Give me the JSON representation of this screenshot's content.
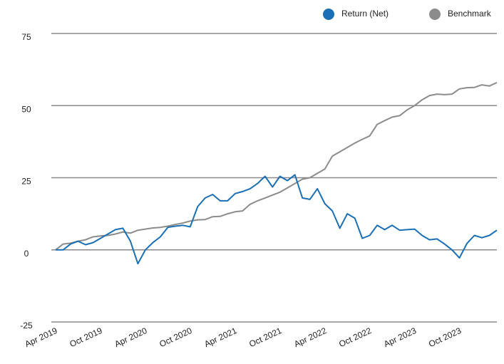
{
  "chart_data": {
    "type": "line",
    "categories": [
      "Apr 2019",
      null,
      null,
      null,
      null,
      null,
      "Oct 2019",
      null,
      null,
      null,
      null,
      null,
      "Apr 2020",
      null,
      null,
      null,
      null,
      null,
      "Oct 2020",
      null,
      null,
      null,
      null,
      null,
      "Apr 2021",
      null,
      null,
      null,
      null,
      null,
      "Oct 2021",
      null,
      null,
      null,
      null,
      null,
      "Apr 2022",
      null,
      null,
      null,
      null,
      null,
      "Oct 2022",
      null,
      null,
      null,
      null,
      null,
      "Apr 2023",
      null,
      null,
      null,
      null,
      null,
      "Oct 2023",
      null,
      null,
      null,
      null,
      null
    ],
    "series": [
      {
        "name": "Return (Net)",
        "color": "#1a6fb5",
        "values": [
          0,
          0,
          2,
          3,
          1.8,
          2.5,
          4,
          5.5,
          7,
          7.5,
          3,
          -4.8,
          0,
          2.5,
          4.5,
          7.8,
          8.2,
          8.5,
          8,
          15,
          18,
          19.2,
          17,
          17,
          19.5,
          20.2,
          21.2,
          23,
          25.5,
          21.8,
          25.5,
          24,
          26,
          18,
          17.5,
          21.2,
          16,
          13.5,
          7.5,
          12.5,
          11,
          4,
          5,
          8.5,
          7,
          8.5,
          6.8,
          7,
          7.2,
          5,
          3.5,
          3.8,
          2,
          0,
          -2.8,
          2.2,
          5,
          4.2,
          5,
          6.8
        ]
      },
      {
        "name": "Benchmark",
        "color": "#8c8c8c",
        "values": [
          0,
          2,
          2.3,
          3,
          3.5,
          4.5,
          4.8,
          5,
          5.5,
          6.2,
          5.8,
          6.8,
          7.2,
          7.6,
          7.8,
          8.2,
          8.8,
          9.3,
          10,
          10.4,
          10.5,
          11.5,
          11.6,
          12.5,
          13.2,
          13.5,
          15.8,
          17,
          18,
          19,
          20,
          21.5,
          23,
          24.5,
          25,
          26.5,
          28,
          32.5,
          34,
          35.5,
          37,
          38.3,
          39.5,
          43.5,
          44.8,
          46,
          46.5,
          48.5,
          50,
          52,
          53.5,
          54,
          53.8,
          54,
          55.8,
          56.2,
          56.3,
          57.2,
          56.8,
          58
        ]
      }
    ],
    "ylim": [
      -25,
      75
    ],
    "yticks": [
      -25,
      0,
      25,
      50,
      75
    ],
    "grid": true
  }
}
